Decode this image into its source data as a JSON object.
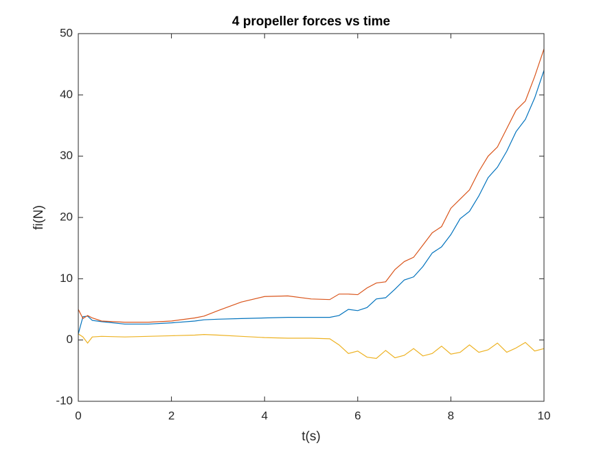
{
  "chart_data": {
    "type": "line",
    "title": "4 propeller forces vs time",
    "xlabel": "t(s)",
    "ylabel": "fi(N)",
    "x": [
      0,
      0.1,
      0.2,
      0.3,
      0.5,
      1,
      1.5,
      2,
      2.5,
      2.7,
      3,
      3.5,
      4,
      4.5,
      5,
      5.4,
      5.6,
      5.8,
      6,
      6.2,
      6.4,
      6.6,
      6.8,
      7,
      7.2,
      7.4,
      7.6,
      7.8,
      8,
      8.2,
      8.4,
      8.6,
      8.8,
      9,
      9.2,
      9.4,
      9.6,
      9.8,
      10
    ],
    "series": [
      {
        "color": "#0072bd",
        "values": [
          1,
          3.8,
          3.9,
          3.2,
          3.0,
          2.6,
          2.6,
          2.8,
          3.1,
          3.3,
          3.4,
          3.5,
          3.6,
          3.7,
          3.7,
          3.7,
          4.0,
          5.0,
          4.8,
          5.3,
          6.7,
          6.9,
          8.3,
          9.8,
          10.3,
          12.0,
          14.2,
          15.2,
          17.2,
          19.8,
          21.0,
          23.5,
          26.5,
          28.2,
          30.8,
          34.0,
          36.0,
          39.5,
          44
        ]
      },
      {
        "color": "#d95319",
        "values": [
          5,
          3.5,
          4,
          3.6,
          3.1,
          2.9,
          2.9,
          3.1,
          3.6,
          3.9,
          4.8,
          6.2,
          7.1,
          7.2,
          6.7,
          6.6,
          7.5,
          7.5,
          7.4,
          8.5,
          9.3,
          9.5,
          11.5,
          12.8,
          13.5,
          15.5,
          17.5,
          18.5,
          21.5,
          23,
          24.5,
          27.5,
          30,
          31.5,
          34.5,
          37.5,
          39,
          43,
          47.5
        ]
      },
      {
        "color": "#edb120",
        "values": [
          1,
          0.5,
          -0.5,
          0.5,
          0.6,
          0.5,
          0.6,
          0.7,
          0.8,
          0.9,
          0.8,
          0.6,
          0.4,
          0.3,
          0.3,
          0.2,
          -0.8,
          -2.2,
          -1.8,
          -2.8,
          -3,
          -1.7,
          -2.9,
          -2.5,
          -1.4,
          -2.6,
          -2.2,
          -1.0,
          -2.3,
          -2.0,
          -0.8,
          -2.0,
          -1.6,
          -0.5,
          -2.0,
          -1.3,
          -0.4,
          -1.8,
          -1.4
        ]
      }
    ],
    "xlim": [
      0,
      10
    ],
    "xticks": [
      0,
      2,
      4,
      6,
      8,
      10
    ],
    "ylim": [
      -10,
      50
    ],
    "yticks": [
      -10,
      0,
      10,
      20,
      30,
      40,
      50
    ]
  }
}
